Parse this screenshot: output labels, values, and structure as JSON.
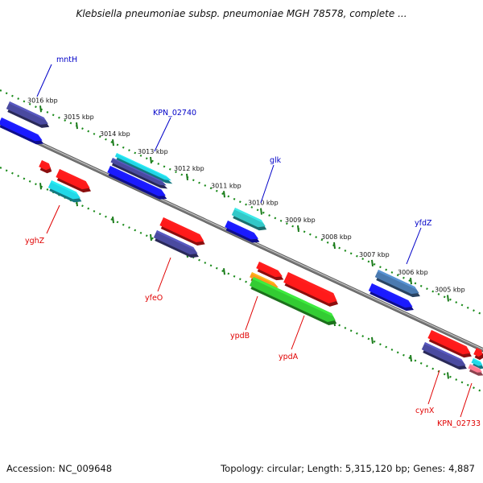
{
  "title": "Klebsiella pneumoniae subsp. pneumoniae MGH 78578, complete ...",
  "footer": {
    "accession_label": "Accession:",
    "accession": "NC_009648",
    "summary": "Topology: circular; Length: 5,315,120 bp; Genes: 4,887"
  },
  "colors": {
    "backbone": "#7a7a7a",
    "scale_dots": "#1a8a1a",
    "label_top": "#0000c8",
    "label_bottom": "#e00000",
    "blue": "#1a1aff",
    "navy": "#4a4aa0",
    "red": "#ff1a1a",
    "cyan": "#22d8e8",
    "teal": "#33c8c8",
    "green": "#33cc33",
    "orange": "#ff9a1a",
    "steel": "#4a7ab0",
    "pink": "#ff7a90"
  },
  "scale": [
    {
      "label": "3016 kbp"
    },
    {
      "label": "3015 kbp"
    },
    {
      "label": "3014 kbp"
    },
    {
      "label": "3013 kbp"
    },
    {
      "label": "3012 kbp"
    },
    {
      "label": "3011 kbp"
    },
    {
      "label": "3010 kbp"
    },
    {
      "label": "3009 kbp"
    },
    {
      "label": "3008 kbp"
    },
    {
      "label": "3007 kbp"
    },
    {
      "label": "3006 kbp"
    },
    {
      "label": "3005 kbp"
    }
  ],
  "gene_labels": [
    {
      "text": "mntH",
      "side": "top"
    },
    {
      "text": "KPN_02740",
      "side": "top"
    },
    {
      "text": "glk",
      "side": "top"
    },
    {
      "text": "yfdZ",
      "side": "top"
    },
    {
      "text": "yghZ",
      "side": "bottom"
    },
    {
      "text": "yfeO",
      "side": "bottom"
    },
    {
      "text": "ypdB",
      "side": "bottom"
    },
    {
      "text": "ypdA",
      "side": "bottom"
    },
    {
      "text": "cynX",
      "side": "bottom"
    },
    {
      "text": "KPN_02733",
      "side": "bottom"
    }
  ],
  "features": [
    {
      "color": "navy"
    },
    {
      "color": "blue"
    },
    {
      "color": "red"
    },
    {
      "color": "red"
    },
    {
      "color": "cyan"
    },
    {
      "color": "cyan"
    },
    {
      "color": "navy"
    },
    {
      "color": "blue"
    },
    {
      "color": "red"
    },
    {
      "color": "navy"
    },
    {
      "color": "teal"
    },
    {
      "color": "blue"
    },
    {
      "color": "red"
    },
    {
      "color": "red"
    },
    {
      "color": "orange"
    },
    {
      "color": "green"
    },
    {
      "color": "steel"
    },
    {
      "color": "blue"
    },
    {
      "color": "red"
    },
    {
      "color": "navy"
    },
    {
      "color": "red"
    },
    {
      "color": "cyan"
    },
    {
      "color": "pink"
    }
  ]
}
